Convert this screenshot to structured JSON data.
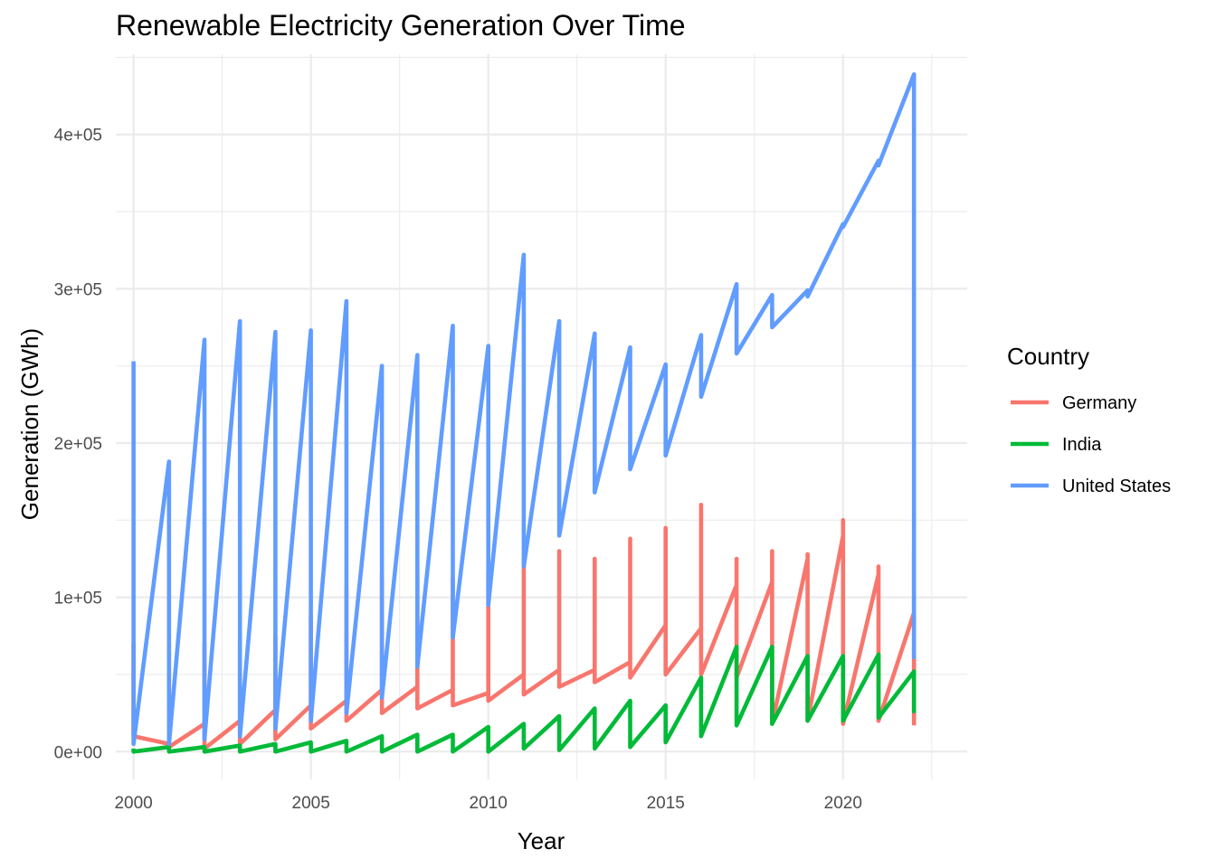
{
  "chart_data": {
    "type": "line",
    "title": "Renewable Electricity Generation Over Time",
    "xlabel": "Year",
    "ylabel": "Generation (GWh)",
    "xlim": [
      1999.5,
      2023.5
    ],
    "ylim": [
      -18000,
      452000
    ],
    "x_ticks": [
      2000,
      2005,
      2010,
      2015,
      2020
    ],
    "x_tick_labels": [
      "2000",
      "2005",
      "2010",
      "2015",
      "2020"
    ],
    "x_minor_ticks": [
      2002.5,
      2007.5,
      2012.5,
      2017.5,
      2022.5
    ],
    "y_ticks": [
      0,
      100000,
      200000,
      300000,
      400000
    ],
    "y_tick_labels": [
      "0e+00",
      "1e+05",
      "2e+05",
      "3e+05",
      "4e+05"
    ],
    "y_minor_ticks": [
      50000,
      150000,
      250000,
      350000,
      450000
    ],
    "grid": true,
    "legend": {
      "title": "Country",
      "position": "right"
    },
    "series": [
      {
        "name": "Germany",
        "color": "#F8766D",
        "points": [
          [
            2000,
            70000
          ],
          [
            2000,
            10000
          ],
          [
            2001,
            5000
          ],
          [
            2001,
            70000
          ],
          [
            2001,
            3000
          ],
          [
            2002,
            18000
          ],
          [
            2002,
            70000
          ],
          [
            2002,
            2000
          ],
          [
            2003,
            20000
          ],
          [
            2003,
            68000
          ],
          [
            2003,
            5000
          ],
          [
            2004,
            27000
          ],
          [
            2004,
            75000
          ],
          [
            2004,
            8000
          ],
          [
            2005,
            30000
          ],
          [
            2005,
            88000
          ],
          [
            2005,
            15000
          ],
          [
            2006,
            33000
          ],
          [
            2006,
            105000
          ],
          [
            2006,
            20000
          ],
          [
            2007,
            40000
          ],
          [
            2007,
            115000
          ],
          [
            2007,
            25000
          ],
          [
            2008,
            42000
          ],
          [
            2008,
            118000
          ],
          [
            2008,
            28000
          ],
          [
            2009,
            40000
          ],
          [
            2009,
            112000
          ],
          [
            2009,
            30000
          ],
          [
            2010,
            38000
          ],
          [
            2010,
            115000
          ],
          [
            2010,
            33000
          ],
          [
            2011,
            50000
          ],
          [
            2011,
            125000
          ],
          [
            2011,
            37000
          ],
          [
            2012,
            53000
          ],
          [
            2012,
            130000
          ],
          [
            2012,
            42000
          ],
          [
            2013,
            53000
          ],
          [
            2013,
            125000
          ],
          [
            2013,
            45000
          ],
          [
            2014,
            58000
          ],
          [
            2014,
            138000
          ],
          [
            2014,
            48000
          ],
          [
            2015,
            82000
          ],
          [
            2015,
            145000
          ],
          [
            2015,
            50000
          ],
          [
            2016,
            80000
          ],
          [
            2016,
            160000
          ],
          [
            2016,
            50000
          ],
          [
            2017,
            108000
          ],
          [
            2017,
            125000
          ],
          [
            2017,
            48000
          ],
          [
            2018,
            110000
          ],
          [
            2018,
            130000
          ],
          [
            2018,
            18000
          ],
          [
            2019,
            125000
          ],
          [
            2019,
            128000
          ],
          [
            2019,
            20000
          ],
          [
            2020,
            140000
          ],
          [
            2020,
            150000
          ],
          [
            2020,
            18000
          ],
          [
            2021,
            115000
          ],
          [
            2021,
            120000
          ],
          [
            2021,
            20000
          ],
          [
            2022,
            90000
          ],
          [
            2022,
            130000
          ],
          [
            2022,
            17000
          ]
        ]
      },
      {
        "name": "India",
        "color": "#00BA38",
        "points": [
          [
            2000,
            2000
          ],
          [
            2000,
            0
          ],
          [
            2001,
            3000
          ],
          [
            2001,
            0
          ],
          [
            2002,
            3000
          ],
          [
            2002,
            0
          ],
          [
            2003,
            4000
          ],
          [
            2003,
            0
          ],
          [
            2004,
            5000
          ],
          [
            2004,
            0
          ],
          [
            2005,
            6000
          ],
          [
            2005,
            0
          ],
          [
            2006,
            7000
          ],
          [
            2006,
            0
          ],
          [
            2007,
            10000
          ],
          [
            2007,
            0
          ],
          [
            2008,
            11000
          ],
          [
            2008,
            0
          ],
          [
            2009,
            11000
          ],
          [
            2009,
            0
          ],
          [
            2010,
            16000
          ],
          [
            2010,
            0
          ],
          [
            2011,
            18000
          ],
          [
            2011,
            2000
          ],
          [
            2012,
            23000
          ],
          [
            2012,
            1000
          ],
          [
            2013,
            28000
          ],
          [
            2013,
            2000
          ],
          [
            2014,
            33000
          ],
          [
            2014,
            3000
          ],
          [
            2015,
            30000
          ],
          [
            2015,
            6000
          ],
          [
            2016,
            48000
          ],
          [
            2016,
            10000
          ],
          [
            2017,
            68000
          ],
          [
            2017,
            17000
          ],
          [
            2018,
            68000
          ],
          [
            2018,
            18000
          ],
          [
            2019,
            62000
          ],
          [
            2019,
            20000
          ],
          [
            2020,
            62000
          ],
          [
            2020,
            20000
          ],
          [
            2021,
            63000
          ],
          [
            2021,
            22000
          ],
          [
            2022,
            52000
          ],
          [
            2022,
            25000
          ]
        ]
      },
      {
        "name": "United States",
        "color": "#619CFF",
        "points": [
          [
            2000,
            253000
          ],
          [
            2000,
            5000
          ],
          [
            2001,
            188000
          ],
          [
            2001,
            5000
          ],
          [
            2002,
            267000
          ],
          [
            2002,
            8000
          ],
          [
            2003,
            279000
          ],
          [
            2003,
            10000
          ],
          [
            2004,
            272000
          ],
          [
            2004,
            15000
          ],
          [
            2005,
            273000
          ],
          [
            2005,
            20000
          ],
          [
            2006,
            292000
          ],
          [
            2006,
            25000
          ],
          [
            2007,
            250000
          ],
          [
            2007,
            35000
          ],
          [
            2008,
            257000
          ],
          [
            2008,
            55000
          ],
          [
            2009,
            276000
          ],
          [
            2009,
            74000
          ],
          [
            2010,
            263000
          ],
          [
            2010,
            95000
          ],
          [
            2011,
            322000
          ],
          [
            2011,
            120000
          ],
          [
            2012,
            279000
          ],
          [
            2012,
            140000
          ],
          [
            2013,
            271000
          ],
          [
            2013,
            168000
          ],
          [
            2014,
            262000
          ],
          [
            2014,
            183000
          ],
          [
            2015,
            251000
          ],
          [
            2015,
            192000
          ],
          [
            2016,
            270000
          ],
          [
            2016,
            230000
          ],
          [
            2017,
            303000
          ],
          [
            2017,
            258000
          ],
          [
            2018,
            296000
          ],
          [
            2018,
            275000
          ],
          [
            2019,
            299000
          ],
          [
            2019,
            295000
          ],
          [
            2020,
            342000
          ],
          [
            2020,
            340000
          ],
          [
            2021,
            383000
          ],
          [
            2021,
            380000
          ],
          [
            2022,
            439000
          ],
          [
            2022,
            60000
          ]
        ]
      }
    ]
  }
}
